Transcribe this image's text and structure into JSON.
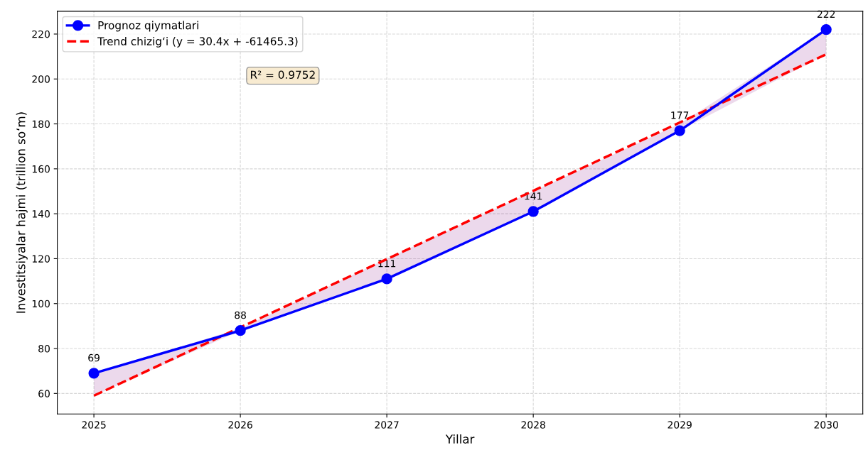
{
  "chart_data": {
    "type": "line",
    "xlabel": "Yillar",
    "ylabel": "Investitsiyalar hajmi (trillion so‘m)",
    "x": [
      2025,
      2026,
      2027,
      2028,
      2029,
      2030
    ],
    "series": [
      {
        "name": "Prognoz qiymatlari",
        "color": "#0000ff",
        "marker": "circle",
        "line_style": "solid",
        "values": [
          69,
          88,
          111,
          141,
          177,
          222
        ],
        "data_labels": true,
        "lower": [
          59,
          88,
          111,
          141,
          177,
          211
        ],
        "upper": [
          69,
          89,
          120,
          150,
          180,
          222
        ]
      },
      {
        "name": "Trend chizig‘i (y = 30.4x + -61465.3)",
        "color": "#ff0000",
        "marker": "none",
        "line_style": "dashed",
        "x": [
          2025,
          2030
        ],
        "values": [
          59,
          211
        ]
      }
    ],
    "annotations": [
      "R² = 0.9752"
    ],
    "xlim": [
      2024.75,
      2030.25
    ],
    "ylim": [
      50.85,
      230.15
    ],
    "xticks": [
      2025,
      2026,
      2027,
      2028,
      2029,
      2030
    ],
    "yticks": [
      60,
      80,
      100,
      120,
      140,
      160,
      180,
      200,
      220
    ],
    "grid": true,
    "legend": "top left"
  }
}
